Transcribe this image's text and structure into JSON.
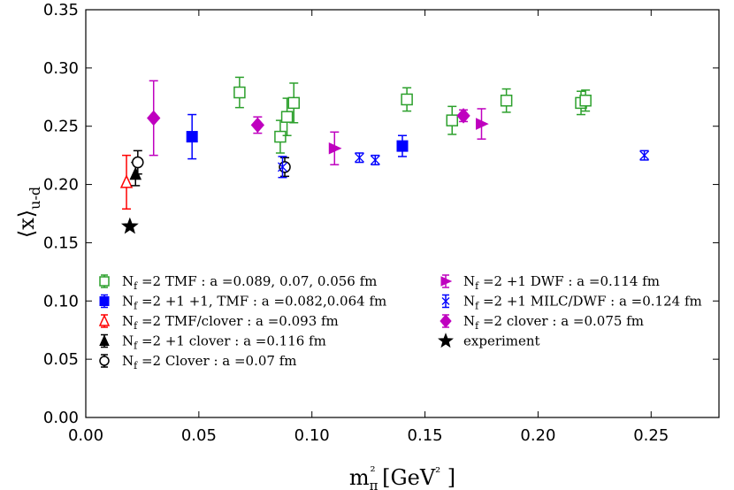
{
  "chart_data": {
    "type": "scatter",
    "title": "",
    "xlabel": "mπ²  [GeV² ]",
    "ylabel": "⟨x⟩u-d",
    "xlim": [
      0.0,
      0.28
    ],
    "ylim": [
      0.0,
      0.35
    ],
    "xticks": [
      0.0,
      0.05,
      0.1,
      0.15,
      0.2,
      0.25
    ],
    "xtick_labels": [
      "0.00",
      "0.05",
      "0.10",
      "0.15",
      "0.20",
      "0.25"
    ],
    "yticks": [
      0.0,
      0.05,
      0.1,
      0.15,
      0.2,
      0.25,
      0.3,
      0.35
    ],
    "ytick_labels": [
      "0.00",
      "0.05",
      "0.10",
      "0.15",
      "0.20",
      "0.25",
      "0.30",
      "0.35"
    ],
    "grid": false,
    "legend_position": "bottom",
    "series": [
      {
        "name": "Nf =2 TMF : a =0.089, 0.07, 0.056 fm",
        "color": "#2ca02c",
        "marker": "square-open",
        "points": [
          {
            "x": 0.068,
            "y": 0.279,
            "err": 0.013
          },
          {
            "x": 0.086,
            "y": 0.241,
            "err": 0.014
          },
          {
            "x": 0.089,
            "y": 0.258,
            "err": 0.016
          },
          {
            "x": 0.092,
            "y": 0.27,
            "err": 0.017
          },
          {
            "x": 0.142,
            "y": 0.273,
            "err": 0.01
          },
          {
            "x": 0.162,
            "y": 0.255,
            "err": 0.012
          },
          {
            "x": 0.186,
            "y": 0.272,
            "err": 0.01
          },
          {
            "x": 0.219,
            "y": 0.27,
            "err": 0.01
          },
          {
            "x": 0.221,
            "y": 0.272,
            "err": 0.009
          }
        ]
      },
      {
        "name": "Nf =2 +1 +1,  TMF : a =0.082,0.064 fm",
        "color": "#0000ff",
        "marker": "square-filled",
        "points": [
          {
            "x": 0.047,
            "y": 0.241,
            "err": 0.019
          },
          {
            "x": 0.14,
            "y": 0.233,
            "err": 0.009
          }
        ]
      },
      {
        "name": "Nf =2 TMF/clover : a =0.093 fm",
        "color": "#ff0000",
        "marker": "triangle-up-open",
        "points": [
          {
            "x": 0.018,
            "y": 0.202,
            "err": 0.023
          }
        ]
      },
      {
        "name": "Nf =2 +1 clover : a =0.116 fm",
        "color": "#000000",
        "marker": "triangle-up-filled",
        "points": [
          {
            "x": 0.022,
            "y": 0.209,
            "err": 0.01
          }
        ]
      },
      {
        "name": "Nf =2 Clover : a =0.07 fm",
        "color": "#000000",
        "marker": "circle-open",
        "points": [
          {
            "x": 0.023,
            "y": 0.219,
            "err": 0.01
          },
          {
            "x": 0.088,
            "y": 0.215,
            "err": 0.008
          }
        ]
      },
      {
        "name": "Nf =2 +1 DWF : a =0.114 fm",
        "color": "#bf00bf",
        "marker": "triangle-right-filled",
        "points": [
          {
            "x": 0.11,
            "y": 0.231,
            "err": 0.014
          },
          {
            "x": 0.175,
            "y": 0.252,
            "err": 0.013
          }
        ]
      },
      {
        "name": "Nf =2 +1 MILC/DWF : a =0.124 fm",
        "color": "#0000ff",
        "marker": "x-cross",
        "points": [
          {
            "x": 0.087,
            "y": 0.215,
            "err": 0.009
          },
          {
            "x": 0.121,
            "y": 0.223,
            "err": 0.004
          },
          {
            "x": 0.128,
            "y": 0.221,
            "err": 0.004
          },
          {
            "x": 0.247,
            "y": 0.225,
            "err": 0.004
          }
        ]
      },
      {
        "name": "Nf =2 clover : a =0.075 fm",
        "color": "#bf00bf",
        "marker": "diamond-filled",
        "points": [
          {
            "x": 0.03,
            "y": 0.257,
            "err": 0.032
          },
          {
            "x": 0.076,
            "y": 0.251,
            "err": 0.007
          },
          {
            "x": 0.167,
            "y": 0.259,
            "err": 0.005
          }
        ]
      },
      {
        "name": "experiment",
        "color": "#000000",
        "marker": "star",
        "points": [
          {
            "x": 0.0195,
            "y": 0.164,
            "err": 0.0
          }
        ]
      }
    ],
    "legend_columns": [
      [
        "Nf =2 TMF : a =0.089, 0.07, 0.056 fm",
        "Nf =2 +1 +1,  TMF : a =0.082,0.064 fm",
        "Nf =2 TMF/clover : a =0.093 fm",
        "Nf =2 +1 clover : a =0.116 fm",
        "Nf =2 Clover : a =0.07 fm"
      ],
      [
        "Nf =2 +1 DWF : a =0.114 fm",
        "Nf =2 +1 MILC/DWF : a =0.124 fm",
        "Nf =2 clover : a =0.075 fm",
        "experiment"
      ]
    ]
  }
}
